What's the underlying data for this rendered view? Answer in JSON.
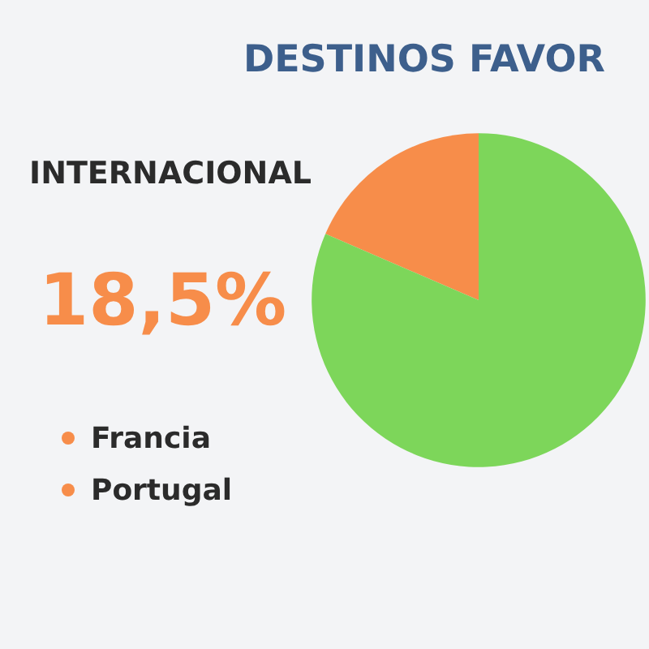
{
  "chart_data": {
    "type": "pie",
    "title": "DESTINOS FAVOR",
    "categories": [
      "INTERNACIONAL",
      null
    ],
    "values": [
      18.5,
      81.5
    ],
    "colors": [
      "#f78d4a",
      "#7dd65a"
    ],
    "value_labels": [
      "18,5%",
      null
    ],
    "annotations": [
      "Francia",
      "Portugal"
    ],
    "legend": false
  }
}
